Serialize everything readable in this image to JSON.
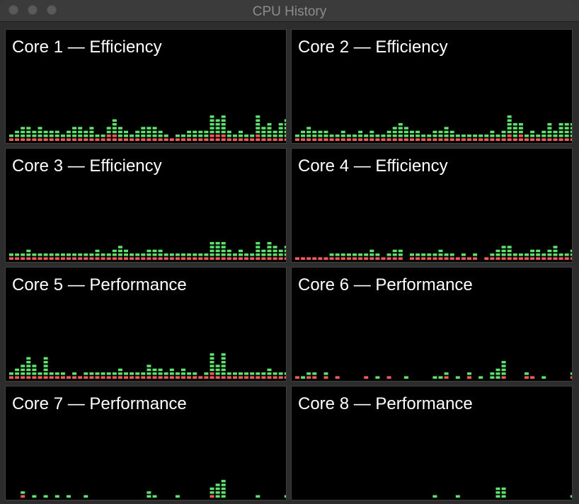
{
  "window": {
    "title": "CPU History"
  },
  "colors": {
    "user": "#5fe36e",
    "system": "#ff5c5c",
    "background": "#000000",
    "border": "#3e3e3e"
  },
  "cores": [
    {
      "name": "Core 1 — Efficiency",
      "history": [
        [
          1,
          1
        ],
        [
          1,
          2
        ],
        [
          1,
          3
        ],
        [
          1,
          3
        ],
        [
          1,
          2
        ],
        [
          1,
          3
        ],
        [
          1,
          2
        ],
        [
          1,
          2
        ],
        [
          1,
          2
        ],
        [
          1,
          1
        ],
        [
          1,
          2
        ],
        [
          1,
          3
        ],
        [
          1,
          3
        ],
        [
          1,
          2
        ],
        [
          1,
          3
        ],
        [
          1,
          1
        ],
        [
          1,
          1
        ],
        [
          2,
          2
        ],
        [
          2,
          4
        ],
        [
          1,
          3
        ],
        [
          1,
          2
        ],
        [
          1,
          1
        ],
        [
          1,
          2
        ],
        [
          1,
          3
        ],
        [
          1,
          3
        ],
        [
          1,
          3
        ],
        [
          1,
          2
        ],
        [
          1,
          1
        ],
        [
          1,
          0
        ],
        [
          1,
          1
        ],
        [
          1,
          1
        ],
        [
          1,
          2
        ],
        [
          1,
          2
        ],
        [
          1,
          2
        ],
        [
          1,
          2
        ],
        [
          2,
          5
        ],
        [
          2,
          4
        ],
        [
          2,
          5
        ],
        [
          1,
          2
        ],
        [
          1,
          1
        ],
        [
          1,
          2
        ],
        [
          1,
          1
        ],
        [
          1,
          1
        ],
        [
          2,
          5
        ],
        [
          1,
          3
        ],
        [
          1,
          4
        ],
        [
          1,
          2
        ],
        [
          1,
          4
        ],
        [
          1,
          5
        ]
      ]
    },
    {
      "name": "Core 2 — Efficiency",
      "history": [
        [
          1,
          1
        ],
        [
          1,
          2
        ],
        [
          1,
          3
        ],
        [
          1,
          2
        ],
        [
          1,
          2
        ],
        [
          1,
          2
        ],
        [
          1,
          1
        ],
        [
          1,
          1
        ],
        [
          1,
          2
        ],
        [
          1,
          1
        ],
        [
          1,
          1
        ],
        [
          1,
          2
        ],
        [
          1,
          1
        ],
        [
          1,
          2
        ],
        [
          1,
          1
        ],
        [
          1,
          1
        ],
        [
          1,
          2
        ],
        [
          1,
          3
        ],
        [
          1,
          4
        ],
        [
          1,
          3
        ],
        [
          1,
          2
        ],
        [
          1,
          2
        ],
        [
          1,
          1
        ],
        [
          1,
          1
        ],
        [
          1,
          2
        ],
        [
          1,
          2
        ],
        [
          1,
          3
        ],
        [
          1,
          2
        ],
        [
          1,
          1
        ],
        [
          1,
          1
        ],
        [
          1,
          1
        ],
        [
          1,
          1
        ],
        [
          1,
          1
        ],
        [
          1,
          1
        ],
        [
          1,
          2
        ],
        [
          1,
          1
        ],
        [
          1,
          2
        ],
        [
          2,
          5
        ],
        [
          1,
          4
        ],
        [
          2,
          3
        ],
        [
          1,
          1
        ],
        [
          1,
          2
        ],
        [
          1,
          1
        ],
        [
          1,
          2
        ],
        [
          1,
          4
        ],
        [
          1,
          2
        ],
        [
          1,
          4
        ],
        [
          1,
          4
        ],
        [
          1,
          4
        ]
      ]
    },
    {
      "name": "Core 3 — Efficiency",
      "history": [
        [
          1,
          1
        ],
        [
          1,
          1
        ],
        [
          1,
          1
        ],
        [
          1,
          2
        ],
        [
          1,
          1
        ],
        [
          1,
          1
        ],
        [
          1,
          1
        ],
        [
          1,
          1
        ],
        [
          1,
          1
        ],
        [
          1,
          1
        ],
        [
          1,
          1
        ],
        [
          1,
          1
        ],
        [
          1,
          1
        ],
        [
          1,
          1
        ],
        [
          1,
          1
        ],
        [
          1,
          2
        ],
        [
          1,
          1
        ],
        [
          1,
          1
        ],
        [
          1,
          2
        ],
        [
          1,
          3
        ],
        [
          1,
          2
        ],
        [
          1,
          1
        ],
        [
          1,
          1
        ],
        [
          1,
          1
        ],
        [
          1,
          2
        ],
        [
          1,
          2
        ],
        [
          1,
          2
        ],
        [
          1,
          1
        ],
        [
          1,
          1
        ],
        [
          1,
          1
        ],
        [
          1,
          1
        ],
        [
          1,
          1
        ],
        [
          1,
          1
        ],
        [
          1,
          1
        ],
        [
          1,
          1
        ],
        [
          1,
          4
        ],
        [
          1,
          4
        ],
        [
          1,
          4
        ],
        [
          1,
          2
        ],
        [
          1,
          1
        ],
        [
          1,
          2
        ],
        [
          1,
          1
        ],
        [
          1,
          1
        ],
        [
          1,
          4
        ],
        [
          1,
          2
        ],
        [
          1,
          4
        ],
        [
          1,
          3
        ],
        [
          1,
          2
        ],
        [
          1,
          3
        ]
      ]
    },
    {
      "name": "Core 4 — Efficiency",
      "history": [
        [
          1,
          0
        ],
        [
          1,
          0
        ],
        [
          1,
          0
        ],
        [
          1,
          0
        ],
        [
          1,
          0
        ],
        [
          1,
          0
        ],
        [
          1,
          1
        ],
        [
          1,
          1
        ],
        [
          1,
          1
        ],
        [
          1,
          1
        ],
        [
          1,
          1
        ],
        [
          1,
          1
        ],
        [
          1,
          1
        ],
        [
          1,
          2
        ],
        [
          1,
          1
        ],
        [
          1,
          0
        ],
        [
          1,
          1
        ],
        [
          1,
          2
        ],
        [
          1,
          2
        ],
        [
          0,
          0
        ],
        [
          1,
          1
        ],
        [
          1,
          1
        ],
        [
          1,
          1
        ],
        [
          1,
          1
        ],
        [
          1,
          1
        ],
        [
          1,
          2
        ],
        [
          1,
          1
        ],
        [
          1,
          1
        ],
        [
          1,
          0
        ],
        [
          1,
          1
        ],
        [
          1,
          0
        ],
        [
          1,
          1
        ],
        [
          0,
          0
        ],
        [
          1,
          0
        ],
        [
          1,
          1
        ],
        [
          1,
          2
        ],
        [
          1,
          3
        ],
        [
          1,
          3
        ],
        [
          1,
          1
        ],
        [
          1,
          1
        ],
        [
          1,
          1
        ],
        [
          1,
          2
        ],
        [
          1,
          2
        ],
        [
          1,
          1
        ],
        [
          1,
          2
        ],
        [
          1,
          3
        ],
        [
          1,
          1
        ],
        [
          1,
          1
        ],
        [
          1,
          2
        ]
      ]
    },
    {
      "name": "Core 5 — Performance",
      "history": [
        [
          1,
          1
        ],
        [
          1,
          2
        ],
        [
          1,
          3
        ],
        [
          1,
          5
        ],
        [
          1,
          3
        ],
        [
          1,
          1
        ],
        [
          1,
          5
        ],
        [
          1,
          1
        ],
        [
          1,
          1
        ],
        [
          1,
          1
        ],
        [
          1,
          0
        ],
        [
          1,
          1
        ],
        [
          1,
          0
        ],
        [
          1,
          1
        ],
        [
          1,
          1
        ],
        [
          1,
          1
        ],
        [
          1,
          1
        ],
        [
          1,
          1
        ],
        [
          1,
          1
        ],
        [
          1,
          2
        ],
        [
          1,
          1
        ],
        [
          1,
          1
        ],
        [
          1,
          1
        ],
        [
          1,
          1
        ],
        [
          1,
          3
        ],
        [
          1,
          2
        ],
        [
          1,
          2
        ],
        [
          1,
          1
        ],
        [
          1,
          2
        ],
        [
          1,
          1
        ],
        [
          1,
          2
        ],
        [
          1,
          1
        ],
        [
          1,
          1
        ],
        [
          1,
          0
        ],
        [
          1,
          1
        ],
        [
          2,
          5
        ],
        [
          1,
          3
        ],
        [
          1,
          6
        ],
        [
          1,
          1
        ],
        [
          1,
          1
        ],
        [
          1,
          1
        ],
        [
          1,
          1
        ],
        [
          1,
          1
        ],
        [
          1,
          1
        ],
        [
          1,
          1
        ],
        [
          1,
          2
        ],
        [
          1,
          1
        ],
        [
          1,
          1
        ],
        [
          1,
          1
        ]
      ]
    },
    {
      "name": "Core 6 — Performance",
      "history": [
        [
          1,
          0
        ],
        [
          0,
          1
        ],
        [
          1,
          1
        ],
        [
          1,
          1
        ],
        [
          0,
          0
        ],
        [
          1,
          1
        ],
        [
          0,
          0
        ],
        [
          1,
          0
        ],
        [
          0,
          0
        ],
        [
          0,
          0
        ],
        [
          0,
          0
        ],
        [
          0,
          0
        ],
        [
          1,
          0
        ],
        [
          0,
          0
        ],
        [
          0,
          1
        ],
        [
          0,
          0
        ],
        [
          1,
          0
        ],
        [
          0,
          0
        ],
        [
          0,
          0
        ],
        [
          0,
          1
        ],
        [
          0,
          0
        ],
        [
          0,
          0
        ],
        [
          0,
          0
        ],
        [
          0,
          0
        ],
        [
          0,
          1
        ],
        [
          0,
          1
        ],
        [
          1,
          1
        ],
        [
          0,
          0
        ],
        [
          0,
          1
        ],
        [
          0,
          0
        ],
        [
          1,
          1
        ],
        [
          0,
          0
        ],
        [
          0,
          1
        ],
        [
          0,
          0
        ],
        [
          0,
          2
        ],
        [
          0,
          3
        ],
        [
          1,
          4
        ],
        [
          0,
          0
        ],
        [
          0,
          0
        ],
        [
          0,
          0
        ],
        [
          1,
          1
        ],
        [
          1,
          0
        ],
        [
          0,
          0
        ],
        [
          0,
          1
        ],
        [
          0,
          0
        ],
        [
          0,
          0
        ],
        [
          0,
          0
        ],
        [
          0,
          0
        ],
        [
          1,
          1
        ]
      ]
    },
    {
      "name": "Core 7 — Performance",
      "history": [
        [
          0,
          0
        ],
        [
          0,
          0
        ],
        [
          1,
          1
        ],
        [
          0,
          0
        ],
        [
          0,
          1
        ],
        [
          0,
          0
        ],
        [
          0,
          1
        ],
        [
          0,
          0
        ],
        [
          0,
          1
        ],
        [
          0,
          0
        ],
        [
          0,
          1
        ],
        [
          0,
          0
        ],
        [
          0,
          0
        ],
        [
          0,
          1
        ],
        [
          0,
          0
        ],
        [
          0,
          0
        ],
        [
          0,
          0
        ],
        [
          0,
          0
        ],
        [
          0,
          0
        ],
        [
          0,
          0
        ],
        [
          0,
          0
        ],
        [
          0,
          0
        ],
        [
          0,
          0
        ],
        [
          0,
          0
        ],
        [
          0,
          2
        ],
        [
          0,
          1
        ],
        [
          0,
          0
        ],
        [
          0,
          0
        ],
        [
          0,
          0
        ],
        [
          0,
          1
        ],
        [
          0,
          0
        ],
        [
          0,
          0
        ],
        [
          0,
          0
        ],
        [
          0,
          0
        ],
        [
          0,
          0
        ],
        [
          1,
          2
        ],
        [
          0,
          4
        ],
        [
          0,
          5
        ],
        [
          0,
          0
        ],
        [
          0,
          0
        ],
        [
          0,
          0
        ],
        [
          0,
          0
        ],
        [
          0,
          0
        ],
        [
          0,
          1
        ],
        [
          0,
          0
        ],
        [
          0,
          0
        ],
        [
          0,
          0
        ],
        [
          0,
          0
        ],
        [
          0,
          1
        ]
      ]
    },
    {
      "name": "Core 8 — Performance",
      "history": [
        [
          0,
          0
        ],
        [
          0,
          0
        ],
        [
          0,
          0
        ],
        [
          0,
          0
        ],
        [
          0,
          0
        ],
        [
          0,
          0
        ],
        [
          0,
          0
        ],
        [
          0,
          0
        ],
        [
          0,
          0
        ],
        [
          0,
          0
        ],
        [
          0,
          0
        ],
        [
          0,
          0
        ],
        [
          0,
          0
        ],
        [
          0,
          0
        ],
        [
          0,
          0
        ],
        [
          0,
          0
        ],
        [
          0,
          0
        ],
        [
          0,
          0
        ],
        [
          0,
          0
        ],
        [
          0,
          0
        ],
        [
          0,
          0
        ],
        [
          0,
          0
        ],
        [
          0,
          0
        ],
        [
          0,
          0
        ],
        [
          0,
          1
        ],
        [
          0,
          0
        ],
        [
          0,
          0
        ],
        [
          0,
          0
        ],
        [
          0,
          1
        ],
        [
          0,
          0
        ],
        [
          0,
          0
        ],
        [
          0,
          0
        ],
        [
          0,
          0
        ],
        [
          0,
          0
        ],
        [
          0,
          0
        ],
        [
          0,
          3
        ],
        [
          0,
          3
        ],
        [
          0,
          0
        ],
        [
          0,
          0
        ],
        [
          0,
          0
        ],
        [
          0,
          0
        ],
        [
          0,
          0
        ],
        [
          0,
          0
        ],
        [
          0,
          0
        ],
        [
          0,
          0
        ],
        [
          0,
          0
        ],
        [
          0,
          0
        ],
        [
          0,
          0
        ],
        [
          0,
          1
        ]
      ]
    }
  ]
}
